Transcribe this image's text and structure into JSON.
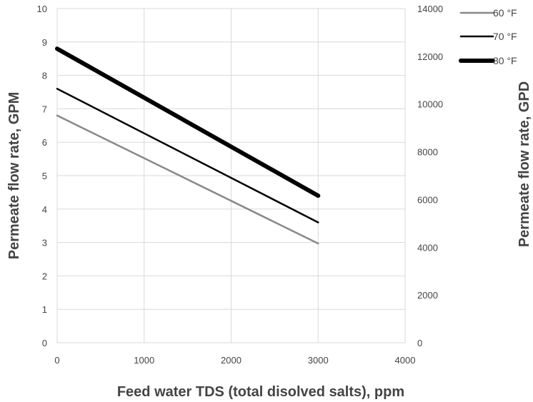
{
  "chart_data": {
    "type": "line",
    "xlabel": "Feed water TDS (total disolved salts), ppm",
    "ylabel": "Permeate flow rate, GPM",
    "y2label": "Permeate flow rate, GPD",
    "xlim": [
      0,
      4000
    ],
    "ylim": [
      0,
      10
    ],
    "y2lim": [
      0,
      14000
    ],
    "x_ticks": [
      "0",
      "1000",
      "2000",
      "3000",
      "4000"
    ],
    "y_ticks": [
      "0",
      "1",
      "2",
      "3",
      "4",
      "5",
      "6",
      "7",
      "8",
      "9",
      "10"
    ],
    "y2_ticks": [
      "0",
      "2000",
      "4000",
      "6000",
      "8000",
      "10000",
      "12000",
      "14000"
    ],
    "grid": true,
    "legend_position": "top-right",
    "series": [
      {
        "name": "60 °F",
        "x": [
          0,
          3000
        ],
        "y": [
          6.8,
          2.97
        ],
        "color": "#888888",
        "width": "thin"
      },
      {
        "name": "70 °F",
        "x": [
          0,
          3000
        ],
        "y": [
          7.6,
          3.6
        ],
        "color": "#000000",
        "width": "medium"
      },
      {
        "name": "80 °F",
        "x": [
          0,
          3000
        ],
        "y": [
          8.8,
          4.4
        ],
        "color": "#000000",
        "width": "thick"
      }
    ]
  }
}
